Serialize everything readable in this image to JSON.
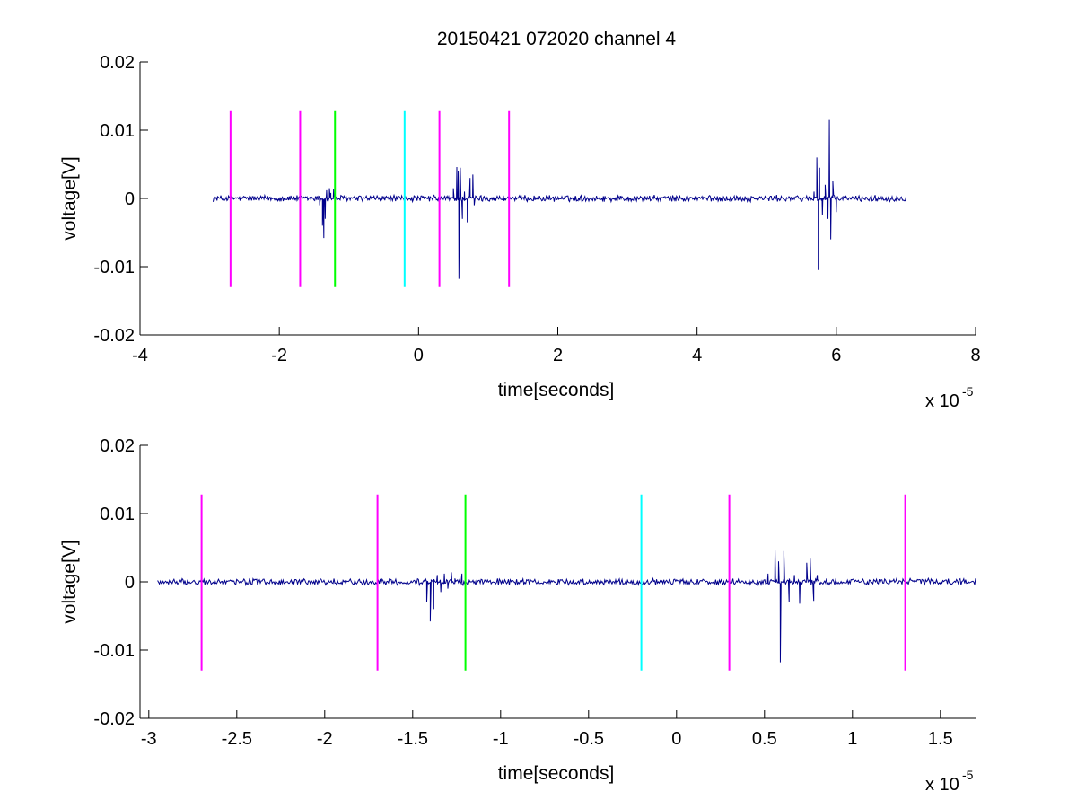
{
  "figure": {
    "title": "20150421 072020 channel 4",
    "colors": {
      "background": "#ffffff",
      "signal": "#00008b",
      "magenta": "#ff00ff",
      "green": "#00ff00",
      "cyan": "#00ffff",
      "axis": "#000000"
    }
  },
  "chart_data": [
    {
      "type": "line",
      "title": "20150421 072020 channel 4",
      "xlabel": "time[seconds]",
      "ylabel": "voltage[V]",
      "x_exponent_label": "x 10",
      "x_exponent_power": "-5",
      "x_scale": 1e-05,
      "xlim": [
        -4,
        8
      ],
      "ylim": [
        -0.02,
        0.02
      ],
      "x_ticks": [
        -4,
        -2,
        0,
        2,
        4,
        6,
        8
      ],
      "x_tick_labels": [
        "-4",
        "-2",
        "0",
        "2",
        "4",
        "6",
        "8"
      ],
      "y_ticks": [
        -0.02,
        -0.01,
        0,
        0.01,
        0.02
      ],
      "y_tick_labels": [
        "-0.02",
        "-0.01",
        "0",
        "0.01",
        "0.02"
      ],
      "grid": false,
      "box": "open (left and bottom axes only)",
      "series": [
        {
          "color": "#00008b",
          "description_in_data_units": "noisy signal from x=-2.95 to x=7.0 (x 1e-5 s)",
          "x_range": [
            -2.95,
            7.0
          ],
          "noise_amplitude": 0.0004,
          "bursts": [
            {
              "x": [
                -1.42,
                -1.38,
                -1.36,
                -1.34,
                -1.32,
                -1.3,
                -1.28,
                -1.26,
                -1.22
              ],
              "y": [
                -0.001,
                -0.004,
                -0.0058,
                -0.003,
                0.0012,
                -0.0005,
                0.0015,
                0.0008,
                0.0014
              ]
            },
            {
              "x": [
                0.5,
                0.55,
                0.57,
                0.58,
                0.6,
                0.63,
                0.66,
                0.7,
                0.74,
                0.78,
                0.8
              ],
              "y": [
                0.0015,
                0.0046,
                0.004,
                -0.0118,
                0.0045,
                -0.003,
                0.001,
                -0.0035,
                0.003,
                0.0035,
                -0.001
              ]
            },
            {
              "x": [
                5.68,
                5.72,
                5.74,
                5.76,
                5.8,
                5.84,
                5.88,
                5.9,
                5.92,
                5.95,
                6.0
              ],
              "y": [
                0.001,
                0.006,
                -0.0105,
                0.0045,
                -0.0025,
                0.002,
                -0.003,
                0.0115,
                -0.006,
                0.0025,
                -0.002
              ]
            }
          ]
        }
      ],
      "markers": [
        {
          "x": -2.7,
          "y_range": [
            -0.013,
            0.0128
          ],
          "color": "#ff00ff"
        },
        {
          "x": -1.7,
          "y_range": [
            -0.013,
            0.0128
          ],
          "color": "#ff00ff"
        },
        {
          "x": -1.2,
          "y_range": [
            -0.013,
            0.0128
          ],
          "color": "#00ff00"
        },
        {
          "x": -0.2,
          "y_range": [
            -0.013,
            0.0128
          ],
          "color": "#00ffff"
        },
        {
          "x": 0.3,
          "y_range": [
            -0.013,
            0.0128
          ],
          "color": "#ff00ff"
        },
        {
          "x": 1.3,
          "y_range": [
            -0.013,
            0.0128
          ],
          "color": "#ff00ff"
        }
      ]
    },
    {
      "type": "line",
      "title": "",
      "xlabel": "time[seconds]",
      "ylabel": "voltage[V]",
      "x_exponent_label": "x 10",
      "x_exponent_power": "-5",
      "x_scale": 1e-05,
      "xlim": [
        -3.05,
        1.7
      ],
      "ylim": [
        -0.02,
        0.02
      ],
      "x_ticks": [
        -3,
        -2.5,
        -2,
        -1.5,
        -1,
        -0.5,
        0,
        0.5,
        1,
        1.5
      ],
      "x_tick_labels": [
        "-3",
        "-2.5",
        "-2",
        "-1.5",
        "-1",
        "-0.5",
        "0",
        "0.5",
        "1",
        "1.5"
      ],
      "y_ticks": [
        -0.02,
        -0.01,
        0,
        0.01,
        0.02
      ],
      "y_tick_labels": [
        "-0.02",
        "-0.01",
        "0",
        "0.01",
        "0.02"
      ],
      "grid": false,
      "box": "open (left and bottom axes only)",
      "series": [
        {
          "color": "#00008b",
          "description_in_data_units": "zoomed view of same signal from x=-2.95 to x=1.7 (x 1e-5 s)",
          "x_range": [
            -2.95,
            1.7
          ],
          "noise_amplitude": 0.0004,
          "bursts": [
            {
              "x": [
                -1.46,
                -1.42,
                -1.4,
                -1.38,
                -1.36,
                -1.34,
                -1.32,
                -1.3,
                -1.28,
                -1.26,
                -1.22
              ],
              "y": [
                -0.0003,
                -0.003,
                -0.0058,
                -0.004,
                0.001,
                -0.0015,
                0.0012,
                -0.001,
                0.0014,
                0.0005,
                0.0012
              ]
            },
            {
              "x": [
                0.52,
                0.56,
                0.58,
                0.59,
                0.61,
                0.64,
                0.67,
                0.7,
                0.74,
                0.76,
                0.78,
                0.8
              ],
              "y": [
                0.0012,
                0.0046,
                0.003,
                -0.0118,
                0.0045,
                -0.003,
                0.001,
                -0.0032,
                0.0028,
                0.0034,
                -0.0028,
                0.001
              ]
            }
          ]
        }
      ],
      "markers": [
        {
          "x": -2.7,
          "y_range": [
            -0.013,
            0.0128
          ],
          "color": "#ff00ff"
        },
        {
          "x": -1.7,
          "y_range": [
            -0.013,
            0.0128
          ],
          "color": "#ff00ff"
        },
        {
          "x": -1.2,
          "y_range": [
            -0.013,
            0.0128
          ],
          "color": "#00ff00"
        },
        {
          "x": -0.2,
          "y_range": [
            -0.013,
            0.0128
          ],
          "color": "#00ffff"
        },
        {
          "x": 0.3,
          "y_range": [
            -0.013,
            0.0128
          ],
          "color": "#ff00ff"
        },
        {
          "x": 1.3,
          "y_range": [
            -0.013,
            0.0128
          ],
          "color": "#ff00ff"
        }
      ]
    }
  ]
}
